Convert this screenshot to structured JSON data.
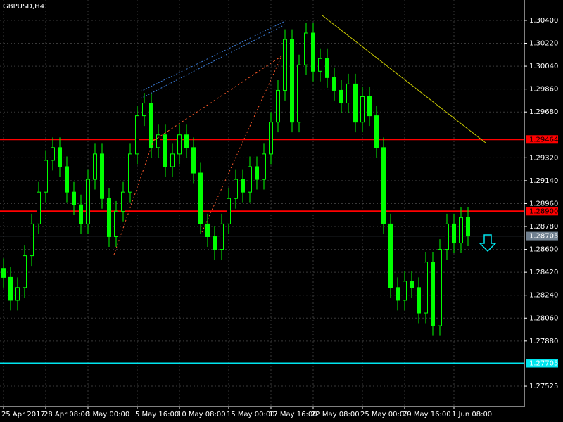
{
  "chart_data": {
    "type": "candlestick",
    "title": "GBPUSD,H4",
    "categories": [
      "25 Apr 2017",
      null,
      null,
      null,
      null,
      null,
      "28 Apr 08:00",
      null,
      null,
      null,
      null,
      null,
      "3 May 00:00",
      null,
      null,
      null,
      null,
      null,
      null,
      "5 May 16:00",
      null,
      null,
      null,
      null,
      null,
      "10 May 08:00",
      null,
      null,
      null,
      null,
      null,
      null,
      "15 May 00:00",
      null,
      null,
      null,
      null,
      null,
      "17 May 16:00",
      null,
      null,
      null,
      null,
      null,
      "22 May 08:00",
      null,
      null,
      null,
      null,
      null,
      null,
      "25 May 00:00",
      null,
      null,
      null,
      null,
      null,
      "29 May 16:00",
      null,
      null,
      null,
      null,
      null,
      null,
      "1 Jun 08:00",
      null,
      null
    ],
    "open": [
      1.2845,
      1.2838,
      1.282,
      1.283,
      1.2855,
      1.288,
      1.2905,
      1.293,
      1.294,
      1.2925,
      1.2905,
      1.2895,
      1.288,
      1.2915,
      1.2935,
      1.29,
      1.287,
      1.289,
      1.2905,
      1.2935,
      1.2965,
      1.2975,
      1.294,
      1.295,
      1.2925,
      1.2935,
      1.295,
      1.294,
      1.292,
      1.288,
      1.287,
      1.286,
      1.288,
      1.29,
      1.2915,
      1.2905,
      1.2925,
      1.2915,
      1.2935,
      1.296,
      1.2985,
      1.3025,
      1.296,
      1.3005,
      1.303,
      1.3,
      1.301,
      1.2995,
      1.2985,
      1.2975,
      1.299,
      1.296,
      1.298,
      1.2965,
      1.294,
      1.288,
      1.283,
      1.282,
      1.2835,
      1.283,
      1.281,
      1.285,
      1.28,
      1.286,
      1.288,
      1.2865,
      1.2885
    ],
    "high": [
      1.2853,
      1.2846,
      1.2838,
      1.2863,
      1.2888,
      1.2913,
      1.2938,
      1.2948,
      1.2948,
      1.2933,
      1.2913,
      1.2903,
      1.2923,
      1.2943,
      1.2943,
      1.2908,
      1.2898,
      1.2913,
      1.2943,
      1.2973,
      1.2983,
      1.2983,
      1.2958,
      1.2958,
      1.2943,
      1.2958,
      1.2958,
      1.2948,
      1.2928,
      1.2888,
      1.2878,
      1.2888,
      1.2908,
      1.2923,
      1.2923,
      1.2933,
      1.2933,
      1.2943,
      1.2968,
      1.2993,
      1.3033,
      1.3033,
      1.3013,
      1.3038,
      1.3038,
      1.3018,
      1.3018,
      1.3003,
      1.2993,
      1.2998,
      1.2998,
      1.2988,
      1.2988,
      1.2973,
      1.2948,
      1.2888,
      1.2838,
      1.2843,
      1.2843,
      1.2838,
      1.2858,
      1.2858,
      1.2868,
      1.2888,
      1.2888,
      1.2893,
      1.2893
    ],
    "low": [
      1.283,
      1.2812,
      1.2812,
      1.2822,
      1.2847,
      1.2872,
      1.2897,
      1.2922,
      1.2917,
      1.2897,
      1.2887,
      1.2872,
      1.2872,
      1.2907,
      1.2892,
      1.2862,
      1.2862,
      1.2882,
      1.2897,
      1.2927,
      1.2957,
      1.2932,
      1.2932,
      1.2917,
      1.2917,
      1.2927,
      1.2932,
      1.2912,
      1.2872,
      1.2862,
      1.2852,
      1.2852,
      1.2872,
      1.2892,
      1.2897,
      1.2897,
      1.2907,
      1.2907,
      1.2927,
      1.2952,
      1.2977,
      1.2952,
      1.2952,
      1.2997,
      1.2992,
      1.2992,
      1.2987,
      1.2977,
      1.2967,
      1.2967,
      1.2952,
      1.2952,
      1.2957,
      1.2932,
      1.2872,
      1.2822,
      1.2812,
      1.2812,
      1.2822,
      1.2802,
      1.2802,
      1.2792,
      1.2792,
      1.2852,
      1.2857,
      1.2857,
      1.28625
    ],
    "close": [
      1.2838,
      1.282,
      1.283,
      1.2855,
      1.288,
      1.2905,
      1.293,
      1.294,
      1.2925,
      1.2905,
      1.2895,
      1.288,
      1.2915,
      1.2935,
      1.29,
      1.287,
      1.289,
      1.2905,
      1.2935,
      1.2965,
      1.2975,
      1.294,
      1.295,
      1.2925,
      1.2935,
      1.295,
      1.294,
      1.292,
      1.288,
      1.287,
      1.286,
      1.288,
      1.29,
      1.2915,
      1.2905,
      1.2925,
      1.2915,
      1.2935,
      1.296,
      1.2985,
      1.3025,
      1.296,
      1.3005,
      1.303,
      1.3,
      1.301,
      1.2995,
      1.2985,
      1.2975,
      1.299,
      1.296,
      1.298,
      1.2965,
      1.294,
      1.288,
      1.283,
      1.282,
      1.2835,
      1.283,
      1.281,
      1.285,
      1.28,
      1.286,
      1.288,
      1.2865,
      1.2885,
      1.28705
    ],
    "color": "#00ff00",
    "ylim": [
      1.27365,
      1.3056
    ],
    "yticks": [
      {
        "value": 1.304,
        "label": "1.30400"
      },
      {
        "value": 1.3022,
        "label": "1.30220"
      },
      {
        "value": 1.3004,
        "label": "1.30040"
      },
      {
        "value": 1.2986,
        "label": "1.29860"
      },
      {
        "value": 1.2968,
        "label": "1.29680"
      },
      {
        "value": 1.2932,
        "label": "1.29320"
      },
      {
        "value": 1.2914,
        "label": "1.29140"
      },
      {
        "value": 1.2896,
        "label": "1.28960"
      },
      {
        "value": 1.2878,
        "label": "1.28780"
      },
      {
        "value": 1.286,
        "label": "1.28600"
      },
      {
        "value": 1.2842,
        "label": "1.28420"
      },
      {
        "value": 1.2824,
        "label": "1.28240"
      },
      {
        "value": 1.2806,
        "label": "1.28060"
      },
      {
        "value": 1.2788,
        "label": "1.27880"
      },
      {
        "value": 1.27525,
        "label": "1.27525"
      }
    ],
    "hlines": [
      {
        "value": 1.29464,
        "label": "1.29464",
        "color": "#ff0000"
      },
      {
        "value": 1.289,
        "label": "1.28900",
        "color": "#ff0000"
      },
      {
        "value": 1.28705,
        "label": "1.28705",
        "color": "#708090"
      },
      {
        "value": 1.27705,
        "label": "1.27705",
        "color": "#00e5ee"
      }
    ],
    "grid": true
  }
}
